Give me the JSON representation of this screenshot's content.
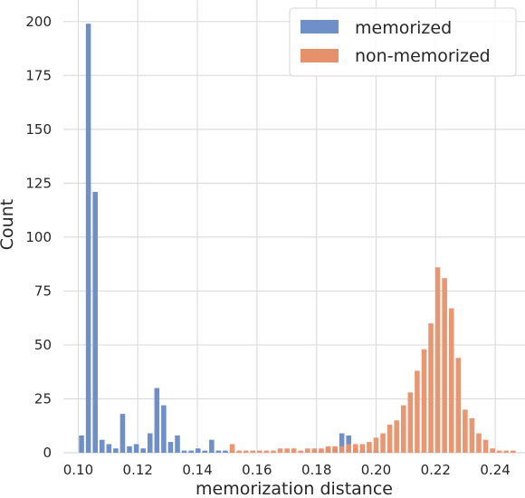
{
  "chart_data": {
    "type": "bar",
    "title": "",
    "xlabel": "memorization distance",
    "ylabel": "Count",
    "xlim": [
      0.095,
      0.25
    ],
    "ylim": [
      0,
      210
    ],
    "xticks": [
      "0.10",
      "0.12",
      "0.14",
      "0.16",
      "0.18",
      "0.20",
      "0.22",
      "0.24"
    ],
    "yticks": [
      "0",
      "25",
      "50",
      "75",
      "100",
      "125",
      "150",
      "175",
      "200"
    ],
    "grid": true,
    "legend_position": "top-right",
    "bin_width": 0.0023,
    "series": [
      {
        "name": "memorized",
        "color": "#6f8fc8",
        "x": [
          0.1011,
          0.1034,
          0.1057,
          0.108,
          0.1103,
          0.1126,
          0.1149,
          0.1172,
          0.1195,
          0.1218,
          0.1241,
          0.1264,
          0.1287,
          0.131,
          0.1333,
          0.1356,
          0.1379,
          0.1402,
          0.1425,
          0.1448,
          0.1471,
          0.1494,
          0.1517,
          0.154,
          0.1563,
          0.1586,
          0.1609,
          0.1632,
          0.1655,
          0.1678,
          0.1701,
          0.1724,
          0.1747,
          0.177,
          0.1793,
          0.1816,
          0.1839,
          0.1862,
          0.1885,
          0.1908,
          0.1931,
          0.1954,
          0.1977,
          0.2,
          0.2023,
          0.2046
        ],
        "values": [
          8,
          199,
          121,
          6,
          4,
          2,
          18,
          3,
          4,
          2,
          9,
          30,
          22,
          5,
          8,
          1,
          1,
          2,
          1,
          6,
          1,
          1,
          1,
          0,
          0,
          0,
          0,
          0,
          0,
          0,
          0,
          0,
          0,
          0,
          1,
          1,
          2,
          2,
          9,
          8,
          2,
          1,
          1,
          1,
          0,
          1
        ]
      },
      {
        "name": "non-memorized",
        "color": "#e7916a",
        "x": [
          0.1517,
          0.154,
          0.1563,
          0.1586,
          0.1609,
          0.1632,
          0.1655,
          0.1678,
          0.1701,
          0.1724,
          0.1747,
          0.177,
          0.1793,
          0.1816,
          0.1839,
          0.1862,
          0.1885,
          0.1908,
          0.1931,
          0.1954,
          0.1977,
          0.2,
          0.2023,
          0.2046,
          0.2069,
          0.2092,
          0.2115,
          0.2138,
          0.2161,
          0.2184,
          0.2207,
          0.223,
          0.2253,
          0.2276,
          0.2299,
          0.2322,
          0.2345,
          0.2368,
          0.2391,
          0.2414,
          0.2437,
          0.246
        ],
        "values": [
          4,
          1,
          1,
          1,
          1,
          1,
          1,
          2,
          2,
          2,
          1,
          2,
          2,
          2,
          3,
          3,
          3,
          4,
          4,
          4,
          5,
          7,
          9,
          13,
          15,
          22,
          28,
          38,
          48,
          60,
          86,
          81,
          67,
          44,
          20,
          16,
          9,
          6,
          2,
          1,
          1,
          1
        ]
      }
    ]
  }
}
